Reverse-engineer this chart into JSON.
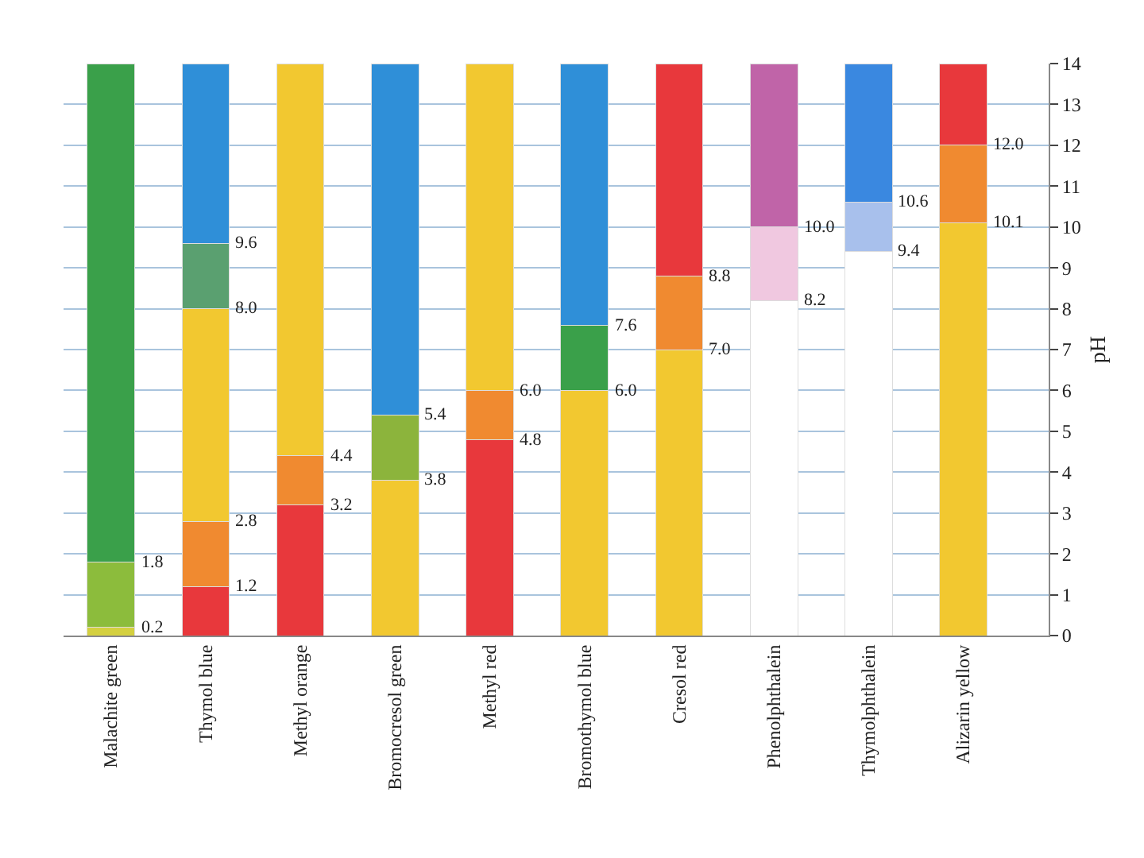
{
  "chart_data": {
    "type": "bar",
    "stacked": true,
    "categories": [
      "Malachite green",
      "Thymol blue",
      "Methyl orange",
      "Bromocresol green",
      "Methyl red",
      "Bromothymol blue",
      "Cresol red",
      "Phenolphthalein",
      "Thymolphthalein",
      "Alizarin yellow"
    ],
    "series": [
      {
        "colors": [
          "#d4d040",
          "#e8383c",
          "#e8383c",
          "#f2c830",
          "#e8383c",
          "#f2c830",
          "#f2c830",
          "#ffffff",
          "#ffffff",
          "#f2c830"
        ],
        "values": [
          0.2,
          1.2,
          3.2,
          3.8,
          4.8,
          6.0,
          7.0,
          8.2,
          9.4,
          10.1
        ]
      },
      {
        "colors": [
          "#8cbc3c",
          "#f08a30",
          "#f08a30",
          "#8cb43c",
          "#f08a30",
          "#3aa04a",
          "#f08a30",
          "#f0c8e0",
          "#a8c0ec",
          "#f08a30"
        ],
        "values": [
          1.6,
          1.6,
          1.2,
          1.6,
          1.2,
          1.6,
          1.8,
          1.8,
          1.2,
          1.9
        ]
      },
      {
        "colors": [
          "#3aa04a",
          "#f2c830",
          "#f2c830",
          "#2f8fd8",
          "#f2c830",
          "#2f8fd8",
          "#e8383c",
          "#c064a8",
          "#3a88e0",
          "#e8383c"
        ],
        "values": [
          12.2,
          5.2,
          9.6,
          8.6,
          8.0,
          6.4,
          5.2,
          4.0,
          3.4,
          2.0
        ]
      },
      {
        "colors": [
          "#3aa04a",
          "#5aa070",
          "#ffffff",
          "#ffffff",
          "#ffffff",
          "#ffffff",
          "#ffffff",
          "#ffffff",
          "#ffffff",
          "#ffffff"
        ],
        "values": [
          null,
          1.6,
          null,
          null,
          null,
          null,
          null,
          null,
          null,
          null
        ]
      },
      {
        "colors": [
          "#3aa04a",
          "#2f8fd8",
          "#ffffff",
          "#ffffff",
          "#ffffff",
          "#ffffff",
          "#ffffff",
          "#ffffff",
          "#ffffff",
          "#ffffff"
        ],
        "values": [
          null,
          4.4,
          null,
          null,
          null,
          null,
          null,
          null,
          null,
          null
        ]
      }
    ],
    "ylabel": "pH",
    "ylim": [
      0,
      14
    ],
    "yticks": [
      0,
      1,
      2,
      3,
      4,
      5,
      6,
      7,
      8,
      9,
      10,
      11,
      12,
      13,
      14
    ],
    "grid": "y",
    "annotations": [
      {
        "text": "0.2",
        "x": "Malachite green",
        "y": 0.2
      },
      {
        "text": "1.8",
        "x": "Malachite green",
        "y": 1.8
      },
      {
        "text": "1.2",
        "x": "Thymol blue",
        "y": 1.2
      },
      {
        "text": "2.8",
        "x": "Thymol blue",
        "y": 2.8
      },
      {
        "text": "8.0",
        "x": "Thymol blue",
        "y": 8.0
      },
      {
        "text": "9.6",
        "x": "Thymol blue",
        "y": 9.6
      },
      {
        "text": "3.2",
        "x": "Methyl orange",
        "y": 3.2
      },
      {
        "text": "4.4",
        "x": "Methyl orange",
        "y": 4.4
      },
      {
        "text": "3.8",
        "x": "Bromocresol green",
        "y": 3.8
      },
      {
        "text": "5.4",
        "x": "Bromocresol green",
        "y": 5.4
      },
      {
        "text": "4.8",
        "x": "Methyl red",
        "y": 4.8
      },
      {
        "text": "6.0",
        "x": "Methyl red",
        "y": 6.0
      },
      {
        "text": "6.0",
        "x": "Bromothymol blue",
        "y": 6.0
      },
      {
        "text": "7.6",
        "x": "Bromothymol blue",
        "y": 7.6
      },
      {
        "text": "7.0",
        "x": "Cresol red",
        "y": 7.0
      },
      {
        "text": "8.8",
        "x": "Cresol red",
        "y": 8.8
      },
      {
        "text": "8.2",
        "x": "Phenolphthalein",
        "y": 8.2
      },
      {
        "text": "10.0",
        "x": "Phenolphthalein",
        "y": 10.0
      },
      {
        "text": "9.4",
        "x": "Thymolphthalein",
        "y": 9.4
      },
      {
        "text": "10.6",
        "x": "Thymolphthalein",
        "y": 10.6
      },
      {
        "text": "10.1",
        "x": "Alizarin yellow",
        "y": 10.1
      },
      {
        "text": "12.0",
        "x": "Alizarin yellow",
        "y": 12.0
      }
    ]
  }
}
